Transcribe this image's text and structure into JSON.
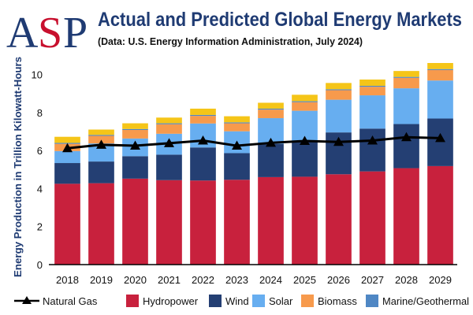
{
  "logo": {
    "text": "ASP",
    "letters": [
      "A",
      "S",
      "P"
    ]
  },
  "chart_data": {
    "type": "bar",
    "stacked": true,
    "title": "Actual and Predicted Global Energy Markets",
    "subtitle": "(Data: U.S. Energy Information Administration, July 2024)",
    "ylabel": "Energy Production in Trillion Kilowatt-Hours",
    "xlabel": "",
    "ylim": [
      0,
      10.6
    ],
    "yticks": [
      "0",
      "2",
      "4",
      "6",
      "8",
      "10"
    ],
    "ytick_values": [
      0,
      2,
      4,
      6,
      8,
      10
    ],
    "categories": [
      "2018",
      "2019",
      "2020",
      "2021",
      "2022",
      "2023",
      "2024",
      "2025",
      "2026",
      "2027",
      "2028",
      "2029"
    ],
    "series": [
      {
        "name": "Hydropower",
        "color": "#c8213d",
        "values": [
          4.25,
          4.28,
          4.52,
          4.44,
          4.42,
          4.46,
          4.6,
          4.62,
          4.75,
          4.9,
          5.07,
          5.18
        ]
      },
      {
        "name": "Wind",
        "color": "#243f73",
        "values": [
          1.09,
          1.14,
          1.18,
          1.34,
          1.74,
          1.4,
          1.75,
          1.85,
          2.2,
          2.25,
          2.32,
          2.5
        ]
      },
      {
        "name": "Solar",
        "color": "#67aef0",
        "values": [
          0.63,
          0.95,
          0.93,
          1.1,
          1.26,
          1.15,
          1.35,
          1.62,
          1.72,
          1.75,
          1.88,
          2.0
        ]
      },
      {
        "name": "Biomass",
        "color": "#f79a4c",
        "values": [
          0.38,
          0.4,
          0.45,
          0.5,
          0.4,
          0.42,
          0.45,
          0.45,
          0.5,
          0.45,
          0.55,
          0.55
        ]
      },
      {
        "name": "Marine/Geothermal",
        "color": "#4f87c4",
        "values": [
          0.05,
          0.05,
          0.05,
          0.05,
          0.05,
          0.05,
          0.05,
          0.05,
          0.05,
          0.05,
          0.05,
          0.05
        ]
      },
      {
        "name": "Top",
        "color": "#f5c518",
        "legend": false,
        "values": [
          0.32,
          0.28,
          0.3,
          0.3,
          0.33,
          0.32,
          0.31,
          0.34,
          0.33,
          0.33,
          0.31,
          0.32
        ]
      }
    ],
    "line_series": {
      "name": "Natural Gas",
      "color": "#000000",
      "marker": "triangle",
      "values": [
        6.12,
        6.3,
        6.25,
        6.38,
        6.52,
        6.25,
        6.4,
        6.5,
        6.45,
        6.52,
        6.7,
        6.65
      ]
    },
    "legend": {
      "position": "bottom",
      "entries": [
        "Natural Gas",
        "Hydropower",
        "Wind",
        "Solar",
        "Biomass",
        "Marine/Geothermal"
      ]
    }
  }
}
